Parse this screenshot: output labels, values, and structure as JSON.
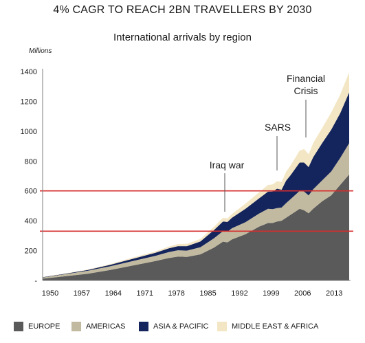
{
  "header": {
    "main_title": "4% CAGR TO REACH 2BN TRAVELLERS BY 2030",
    "chart_title": "International arrivals by region",
    "unit_label": "Millions"
  },
  "colors": {
    "europe": "#5a5a5a",
    "americas": "#c2baa0",
    "asia_pacific": "#14245c",
    "middle_east_africa": "#f3e6c4",
    "reference_line": "#d62c2c"
  },
  "chart_data": {
    "type": "area",
    "stacked": true,
    "title": "International arrivals by region",
    "ylabel": "Millions",
    "ylim": [
      0,
      1400
    ],
    "xlim": [
      1950,
      2018
    ],
    "y_ticks": [
      1400,
      1200,
      1000,
      800,
      600,
      400,
      200,
      0
    ],
    "y_tick_labels": [
      "1400",
      "1200",
      "1000",
      "800",
      "600",
      "400",
      "200",
      "-"
    ],
    "x_ticks": [
      "1950",
      "1957",
      "1964",
      "1971",
      "1978",
      "1985",
      "1992",
      "1999",
      "2006",
      "2013"
    ],
    "x": [
      1950,
      1955,
      1960,
      1965,
      1970,
      1975,
      1978,
      1980,
      1982,
      1985,
      1988,
      1990,
      1991,
      1992,
      1995,
      1998,
      2000,
      2001,
      2002,
      2003,
      2004,
      2005,
      2007,
      2008,
      2009,
      2010,
      2012,
      2014,
      2016,
      2018
    ],
    "series": [
      {
        "name": "EUROPE",
        "values": [
          12,
          28,
          45,
          70,
          100,
          130,
          150,
          160,
          158,
          175,
          220,
          260,
          255,
          275,
          310,
          360,
          385,
          385,
          395,
          400,
          420,
          440,
          480,
          470,
          450,
          480,
          530,
          570,
          640,
          710
        ]
      },
      {
        "name": "AMERICAS",
        "values": [
          8,
          14,
          20,
          25,
          30,
          35,
          40,
          42,
          42,
          48,
          62,
          70,
          72,
          75,
          80,
          88,
          95,
          93,
          90,
          88,
          98,
          105,
          120,
          125,
          120,
          130,
          140,
          160,
          180,
          210
        ]
      },
      {
        "name": "ASIA & PACIFIC",
        "values": [
          2,
          3,
          5,
          10,
          15,
          20,
          25,
          28,
          30,
          38,
          55,
          65,
          65,
          70,
          90,
          102,
          115,
          118,
          130,
          120,
          150,
          160,
          190,
          195,
          190,
          215,
          250,
          280,
          300,
          340
        ]
      },
      {
        "name": "MIDDLE EAST & AFRICA",
        "values": [
          1,
          2,
          3,
          5,
          8,
          10,
          12,
          14,
          15,
          17,
          22,
          25,
          23,
          26,
          35,
          40,
          45,
          47,
          50,
          52,
          60,
          65,
          80,
          90,
          85,
          95,
          100,
          115,
          125,
          135
        ]
      }
    ],
    "reference_lines": [
      600,
      330
    ],
    "annotations": [
      {
        "label": "Iraq war",
        "x": 1991,
        "y": 440
      },
      {
        "label": "SARS",
        "x": 2003,
        "y": 720
      },
      {
        "label": "Financial Crisis",
        "x": 2009,
        "y": 960
      }
    ],
    "legend_position": "bottom"
  }
}
